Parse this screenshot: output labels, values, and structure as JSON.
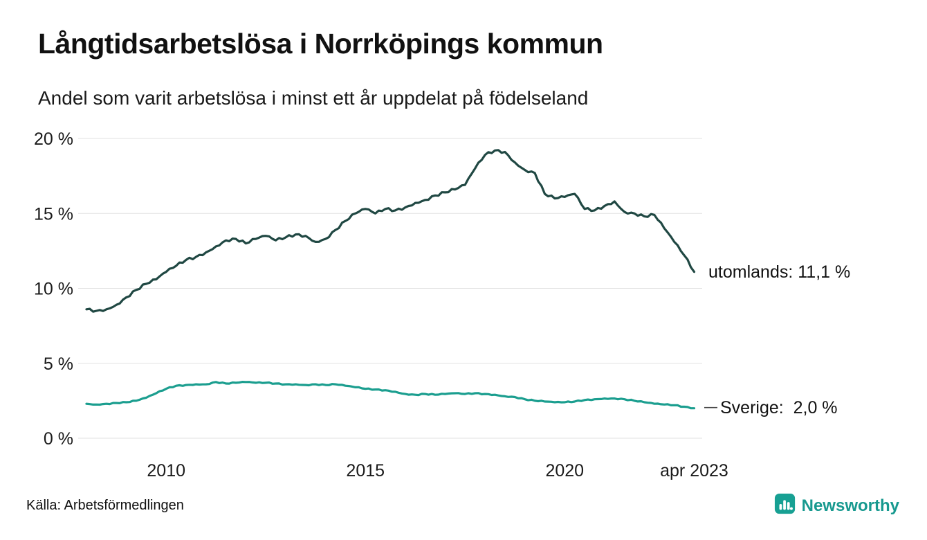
{
  "header": {
    "title": "Långtidsarbetslösa i Norrköpings kommun",
    "subtitle": "Andel som varit arbetslösa i minst ett år uppdelat på födelseland"
  },
  "chart_data": {
    "type": "line",
    "title": "Långtidsarbetslösa i Norrköpings kommun",
    "subtitle": "Andel som varit arbetslösa i minst ett år uppdelat på födelseland",
    "xlabel": "",
    "ylabel": "",
    "grid": "horizontal",
    "legend": "end-labels",
    "xlim": [
      2008,
      2023.45
    ],
    "ylim": [
      0,
      20
    ],
    "yticks": [
      0,
      5,
      10,
      15,
      20
    ],
    "ytick_labels": [
      "0 %",
      "5 %",
      "10 %",
      "15 %",
      "20 %"
    ],
    "xticks": [
      2010,
      2015,
      2020,
      2023.25
    ],
    "xtick_labels": [
      "2010",
      "2015",
      "2020",
      "apr 2023"
    ],
    "x": [
      2008,
      2008.25,
      2008.5,
      2008.75,
      2009,
      2009.25,
      2009.5,
      2009.75,
      2010,
      2010.25,
      2010.5,
      2010.75,
      2011,
      2011.25,
      2011.5,
      2011.75,
      2012,
      2012.25,
      2012.5,
      2012.75,
      2013,
      2013.25,
      2013.5,
      2013.75,
      2014,
      2014.25,
      2014.5,
      2014.75,
      2015,
      2015.25,
      2015.5,
      2015.75,
      2016,
      2016.25,
      2016.5,
      2016.75,
      2017,
      2017.25,
      2017.5,
      2017.75,
      2018,
      2018.25,
      2018.5,
      2018.75,
      2019,
      2019.25,
      2019.5,
      2019.75,
      2020,
      2020.25,
      2020.5,
      2020.75,
      2021,
      2021.25,
      2021.5,
      2021.75,
      2022,
      2022.25,
      2022.5,
      2022.75,
      2023,
      2023.25
    ],
    "series": [
      {
        "name": "utomlands",
        "color": "#204843",
        "end_label": "utomlands: 11,1 %",
        "end_value": "11,1 %",
        "values": [
          8.6,
          8.5,
          8.6,
          8.9,
          9.4,
          9.9,
          10.3,
          10.6,
          11.1,
          11.5,
          11.9,
          12.1,
          12.4,
          12.8,
          13.2,
          13.3,
          13.0,
          13.3,
          13.5,
          13.2,
          13.4,
          13.6,
          13.5,
          13.1,
          13.3,
          13.9,
          14.5,
          15.0,
          15.3,
          15.0,
          15.3,
          15.2,
          15.4,
          15.7,
          15.9,
          16.2,
          16.4,
          16.6,
          16.9,
          18.0,
          18.9,
          19.2,
          19.1,
          18.4,
          17.9,
          17.7,
          16.3,
          16.0,
          16.1,
          16.3,
          15.3,
          15.2,
          15.5,
          15.8,
          15.1,
          15.0,
          14.8,
          14.9,
          14.0,
          13.1,
          12.2,
          11.1
        ]
      },
      {
        "name": "Sverige",
        "color": "#1b9e8f",
        "end_label": "Sverige:  2,0 %",
        "end_value": "2,0 %",
        "values": [
          2.3,
          2.25,
          2.3,
          2.35,
          2.4,
          2.5,
          2.7,
          3.0,
          3.3,
          3.5,
          3.55,
          3.6,
          3.6,
          3.75,
          3.65,
          3.7,
          3.75,
          3.7,
          3.7,
          3.65,
          3.6,
          3.6,
          3.55,
          3.6,
          3.55,
          3.6,
          3.5,
          3.4,
          3.3,
          3.25,
          3.2,
          3.1,
          2.95,
          2.9,
          2.95,
          2.9,
          2.95,
          3.0,
          2.95,
          3.0,
          2.95,
          2.9,
          2.8,
          2.75,
          2.6,
          2.5,
          2.45,
          2.4,
          2.4,
          2.45,
          2.55,
          2.6,
          2.65,
          2.65,
          2.6,
          2.5,
          2.4,
          2.3,
          2.25,
          2.2,
          2.1,
          2.0
        ]
      }
    ]
  },
  "footer": {
    "source": "Källa: Arbetsförmedlingen",
    "brand": "Newsworthy",
    "brand_color": "#17998f"
  }
}
